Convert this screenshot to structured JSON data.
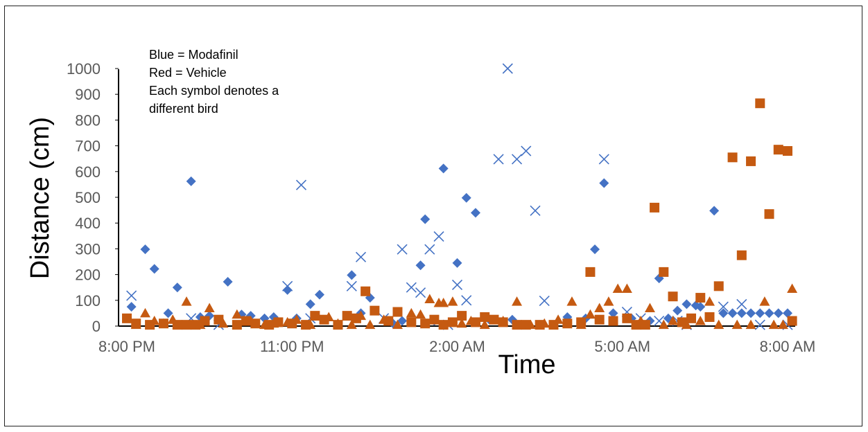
{
  "chart_data": {
    "type": "scatter",
    "xlabel": "Time",
    "ylabel": "Distance (cm)",
    "x_unit": "hour of day (wraps past midnight)",
    "xlim": [
      "8:00 PM",
      "8:00 AM"
    ],
    "ylim": [
      0,
      1000
    ],
    "grid": false,
    "legend": "none",
    "x_ticks": [
      "8:00 PM",
      "11:00 PM",
      "2:00 AM",
      "5:00 AM",
      "8:00 AM"
    ],
    "y_ticks": [
      0,
      100,
      200,
      300,
      400,
      500,
      600,
      700,
      800,
      900,
      1000
    ],
    "annotation": [
      "Blue = Modafinil",
      "Red = Vehicle",
      "Each symbol denotes a",
      "different bird"
    ],
    "colors": {
      "modafinil": "#4472C4",
      "vehicle": "#C55A11"
    },
    "series": [
      {
        "group": "Modafinil",
        "marker": "diamond",
        "color": "#4472C4",
        "points": [
          [
            "8:05 PM",
            75
          ],
          [
            "8:20 PM",
            298
          ],
          [
            "8:30 PM",
            222
          ],
          [
            "8:45 PM",
            50
          ],
          [
            "8:55 PM",
            150
          ],
          [
            "9:10 PM",
            562
          ],
          [
            "9:20 PM",
            35
          ],
          [
            "9:30 PM",
            40
          ],
          [
            "9:50 PM",
            172
          ],
          [
            "10:05 PM",
            45
          ],
          [
            "10:15 PM",
            40
          ],
          [
            "10:30 PM",
            30
          ],
          [
            "10:40 PM",
            35
          ],
          [
            "10:55 PM",
            140
          ],
          [
            "11:05 PM",
            30
          ],
          [
            "11:20 PM",
            85
          ],
          [
            "11:30 PM",
            122
          ],
          [
            "12:05 AM",
            198
          ],
          [
            "12:15 AM",
            50
          ],
          [
            "12:25 AM",
            110
          ],
          [
            "12:50 AM",
            10
          ],
          [
            "1:00 AM",
            20
          ],
          [
            "1:20 AM",
            236
          ],
          [
            "1:25 AM",
            415
          ],
          [
            "1:35 AM",
            20
          ],
          [
            "1:45 AM",
            612
          ],
          [
            "2:00 AM",
            245
          ],
          [
            "2:10 AM",
            498
          ],
          [
            "2:20 AM",
            440
          ],
          [
            "2:35 AM",
            25
          ],
          [
            "3:00 AM",
            25
          ],
          [
            "3:30 AM",
            5
          ],
          [
            "4:00 AM",
            35
          ],
          [
            "4:20 AM",
            30
          ],
          [
            "4:30 AM",
            298
          ],
          [
            "4:40 AM",
            555
          ],
          [
            "4:50 AM",
            50
          ],
          [
            "5:10 AM",
            30
          ],
          [
            "5:30 AM",
            20
          ],
          [
            "5:40 AM",
            185
          ],
          [
            "5:50 AM",
            30
          ],
          [
            "6:00 AM",
            60
          ],
          [
            "6:10 AM",
            85
          ],
          [
            "6:20 AM",
            80
          ],
          [
            "6:25 AM",
            75
          ],
          [
            "6:40 AM",
            448
          ],
          [
            "6:50 AM",
            50
          ],
          [
            "7:00 AM",
            50
          ],
          [
            "7:10 AM",
            50
          ],
          [
            "7:20 AM",
            50
          ],
          [
            "7:30 AM",
            50
          ],
          [
            "7:40 AM",
            50
          ],
          [
            "7:50 AM",
            50
          ],
          [
            "8:00 AM",
            50
          ]
        ]
      },
      {
        "group": "Modafinil",
        "marker": "x",
        "color": "#4472C4",
        "points": [
          [
            "8:05 PM",
            118
          ],
          [
            "9:10 PM",
            30
          ],
          [
            "9:40 PM",
            5
          ],
          [
            "10:55 PM",
            155
          ],
          [
            "11:10 PM",
            548
          ],
          [
            "11:20 PM",
            30
          ],
          [
            "12:05 AM",
            155
          ],
          [
            "12:15 AM",
            268
          ],
          [
            "12:40 AM",
            30
          ],
          [
            "1:00 AM",
            298
          ],
          [
            "1:10 AM",
            150
          ],
          [
            "1:20 AM",
            130
          ],
          [
            "1:30 AM",
            298
          ],
          [
            "1:40 AM",
            348
          ],
          [
            "1:50 AM",
            5
          ],
          [
            "2:00 AM",
            160
          ],
          [
            "2:10 AM",
            100
          ],
          [
            "2:45 AM",
            648
          ],
          [
            "2:55 AM",
            1000
          ],
          [
            "3:05 AM",
            648
          ],
          [
            "3:15 AM",
            680
          ],
          [
            "3:25 AM",
            448
          ],
          [
            "3:35 AM",
            98
          ],
          [
            "4:40 AM",
            648
          ],
          [
            "5:05 AM",
            55
          ],
          [
            "5:20 AM",
            30
          ],
          [
            "5:40 AM",
            20
          ],
          [
            "6:00 AM",
            20
          ],
          [
            "6:10 AM",
            5
          ],
          [
            "6:50 AM",
            75
          ],
          [
            "7:10 AM",
            85
          ],
          [
            "7:30 AM",
            5
          ],
          [
            "8:00 AM",
            5
          ]
        ]
      },
      {
        "group": "Vehicle",
        "marker": "square",
        "color": "#C55A11",
        "points": [
          [
            "8:00 PM",
            30
          ],
          [
            "8:10 PM",
            10
          ],
          [
            "8:25 PM",
            5
          ],
          [
            "8:40 PM",
            10
          ],
          [
            "8:55 PM",
            5
          ],
          [
            "9:05 PM",
            5
          ],
          [
            "9:15 PM",
            5
          ],
          [
            "9:25 PM",
            20
          ],
          [
            "9:40 PM",
            25
          ],
          [
            "10:00 PM",
            5
          ],
          [
            "10:10 PM",
            20
          ],
          [
            "10:20 PM",
            10
          ],
          [
            "10:35 PM",
            5
          ],
          [
            "10:45 PM",
            15
          ],
          [
            "11:00 PM",
            10
          ],
          [
            "11:15 PM",
            5
          ],
          [
            "11:25 PM",
            40
          ],
          [
            "11:35 PM",
            25
          ],
          [
            "11:50 PM",
            5
          ],
          [
            "12:00 AM",
            40
          ],
          [
            "12:10 AM",
            30
          ],
          [
            "12:20 AM",
            135
          ],
          [
            "12:30 AM",
            60
          ],
          [
            "12:45 AM",
            20
          ],
          [
            "12:55 AM",
            55
          ],
          [
            "1:10 AM",
            15
          ],
          [
            "1:25 AM",
            10
          ],
          [
            "1:35 AM",
            25
          ],
          [
            "1:45 AM",
            5
          ],
          [
            "1:55 AM",
            15
          ],
          [
            "2:05 AM",
            40
          ],
          [
            "2:20 AM",
            15
          ],
          [
            "2:30 AM",
            35
          ],
          [
            "2:40 AM",
            25
          ],
          [
            "2:50 AM",
            15
          ],
          [
            "3:05 AM",
            5
          ],
          [
            "3:15 AM",
            5
          ],
          [
            "3:30 AM",
            5
          ],
          [
            "3:45 AM",
            5
          ],
          [
            "4:00 AM",
            10
          ],
          [
            "4:15 AM",
            15
          ],
          [
            "4:25 AM",
            210
          ],
          [
            "4:35 AM",
            25
          ],
          [
            "4:50 AM",
            20
          ],
          [
            "5:05 AM",
            30
          ],
          [
            "5:15 AM",
            5
          ],
          [
            "5:25 AM",
            5
          ],
          [
            "5:35 AM",
            460
          ],
          [
            "5:45 AM",
            210
          ],
          [
            "5:55 AM",
            115
          ],
          [
            "6:05 AM",
            15
          ],
          [
            "6:15 AM",
            30
          ],
          [
            "6:25 AM",
            110
          ],
          [
            "6:35 AM",
            35
          ],
          [
            "6:45 AM",
            155
          ],
          [
            "7:00 AM",
            655
          ],
          [
            "7:10 AM",
            275
          ],
          [
            "7:20 AM",
            640
          ],
          [
            "7:30 AM",
            865
          ],
          [
            "7:40 AM",
            435
          ],
          [
            "7:50 AM",
            685
          ],
          [
            "8:00 AM",
            680
          ],
          [
            "8:05 AM",
            20
          ]
        ]
      },
      {
        "group": "Vehicle",
        "marker": "triangle",
        "color": "#C55A11",
        "points": [
          [
            "8:10 PM",
            5
          ],
          [
            "8:20 PM",
            50
          ],
          [
            "8:30 PM",
            20
          ],
          [
            "8:40 PM",
            10
          ],
          [
            "8:50 PM",
            25
          ],
          [
            "9:05 PM",
            95
          ],
          [
            "9:20 PM",
            5
          ],
          [
            "9:30 PM",
            70
          ],
          [
            "9:45 PM",
            10
          ],
          [
            "10:00 PM",
            45
          ],
          [
            "10:15 PM",
            20
          ],
          [
            "10:30 PM",
            5
          ],
          [
            "10:40 PM",
            10
          ],
          [
            "10:55 PM",
            15
          ],
          [
            "11:05 PM",
            25
          ],
          [
            "11:20 PM",
            5
          ],
          [
            "11:40 PM",
            35
          ],
          [
            "11:50 PM",
            10
          ],
          [
            "12:05 AM",
            5
          ],
          [
            "12:15 AM",
            40
          ],
          [
            "12:25 AM",
            5
          ],
          [
            "12:40 AM",
            25
          ],
          [
            "12:55 AM",
            5
          ],
          [
            "1:10 AM",
            50
          ],
          [
            "1:20 AM",
            45
          ],
          [
            "1:30 AM",
            105
          ],
          [
            "1:40 AM",
            90
          ],
          [
            "1:45 AM",
            90
          ],
          [
            "1:55 AM",
            95
          ],
          [
            "2:05 AM",
            10
          ],
          [
            "2:15 AM",
            20
          ],
          [
            "2:30 AM",
            5
          ],
          [
            "2:50 AM",
            20
          ],
          [
            "3:05 AM",
            95
          ],
          [
            "3:20 AM",
            5
          ],
          [
            "3:35 AM",
            10
          ],
          [
            "3:50 AM",
            25
          ],
          [
            "4:05 AM",
            95
          ],
          [
            "4:15 AM",
            5
          ],
          [
            "4:25 AM",
            45
          ],
          [
            "4:35 AM",
            70
          ],
          [
            "4:45 AM",
            95
          ],
          [
            "4:55 AM",
            145
          ],
          [
            "5:05 AM",
            145
          ],
          [
            "5:20 AM",
            20
          ],
          [
            "5:30 AM",
            70
          ],
          [
            "5:45 AM",
            5
          ],
          [
            "5:55 AM",
            20
          ],
          [
            "6:10 AM",
            5
          ],
          [
            "6:25 AM",
            20
          ],
          [
            "6:35 AM",
            95
          ],
          [
            "6:45 AM",
            5
          ],
          [
            "7:05 AM",
            5
          ],
          [
            "7:20 AM",
            5
          ],
          [
            "7:35 AM",
            95
          ],
          [
            "7:45 AM",
            5
          ],
          [
            "7:55 AM",
            5
          ],
          [
            "8:05 AM",
            145
          ]
        ]
      }
    ]
  }
}
